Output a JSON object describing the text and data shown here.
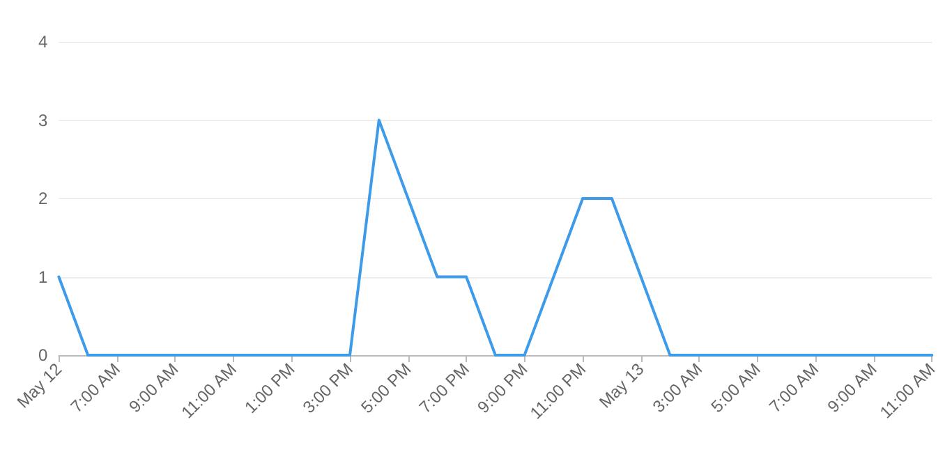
{
  "chart_data": {
    "type": "line",
    "categories": [
      "May 12",
      null,
      "7:00 AM",
      null,
      "9:00 AM",
      null,
      "11:00 AM",
      null,
      "1:00 PM",
      null,
      "3:00 PM",
      null,
      "5:00 PM",
      null,
      "7:00 PM",
      null,
      "9:00 PM",
      null,
      "11:00 PM",
      null,
      "May 13",
      null,
      "3:00 AM",
      null,
      "5:00 AM",
      null,
      "7:00 AM",
      null,
      "9:00 AM",
      null,
      "11:00 AM"
    ],
    "series": [
      {
        "color": "#3d9be9",
        "values": [
          1,
          0,
          0,
          0,
          0,
          0,
          0,
          0,
          0,
          0,
          0,
          3,
          2,
          1,
          1,
          0,
          0,
          1,
          2,
          2,
          1,
          0,
          0,
          0,
          0,
          0,
          0,
          0,
          0,
          0,
          0
        ]
      }
    ],
    "ylim": [
      0,
      4
    ],
    "yticks": [
      0,
      1,
      2,
      3,
      4
    ],
    "grid": "y",
    "marker": "none",
    "line_style": "solid"
  }
}
